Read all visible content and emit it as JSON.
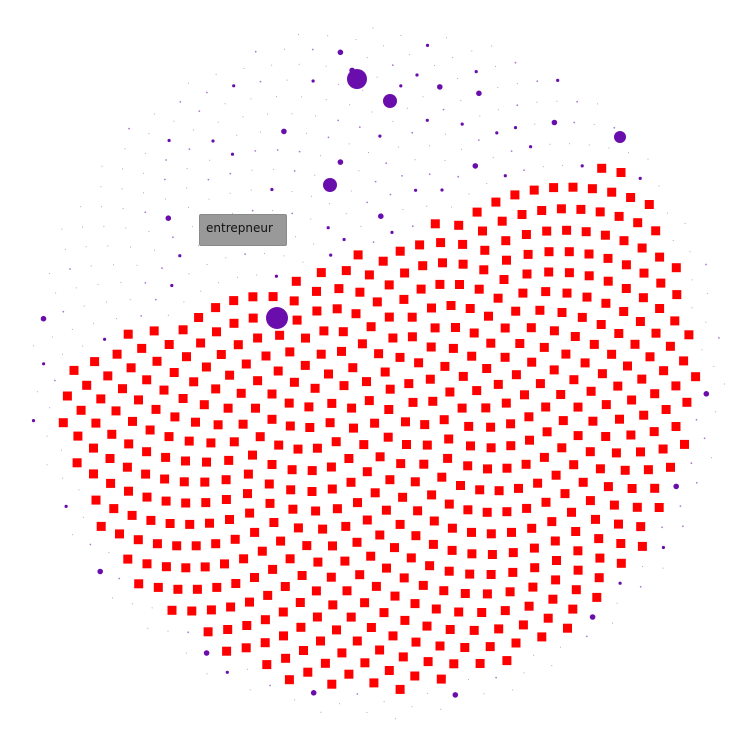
{
  "tooltip": {
    "text": "entrepneur"
  },
  "chart_data": {
    "type": "scatter",
    "title": "",
    "layout": "phyllotaxis-circle",
    "colors": {
      "dot": "#6a0dad",
      "square": "#ff0000",
      "background": "#ffffff"
    },
    "legend": "none",
    "grid": false,
    "highlighted_term": "entrepneur",
    "square_count": 560,
    "prominent_dots": [
      {
        "r": 10
      },
      {
        "r": 11
      },
      {
        "r": 7
      },
      {
        "r": 7
      },
      {
        "r": 6
      }
    ]
  }
}
